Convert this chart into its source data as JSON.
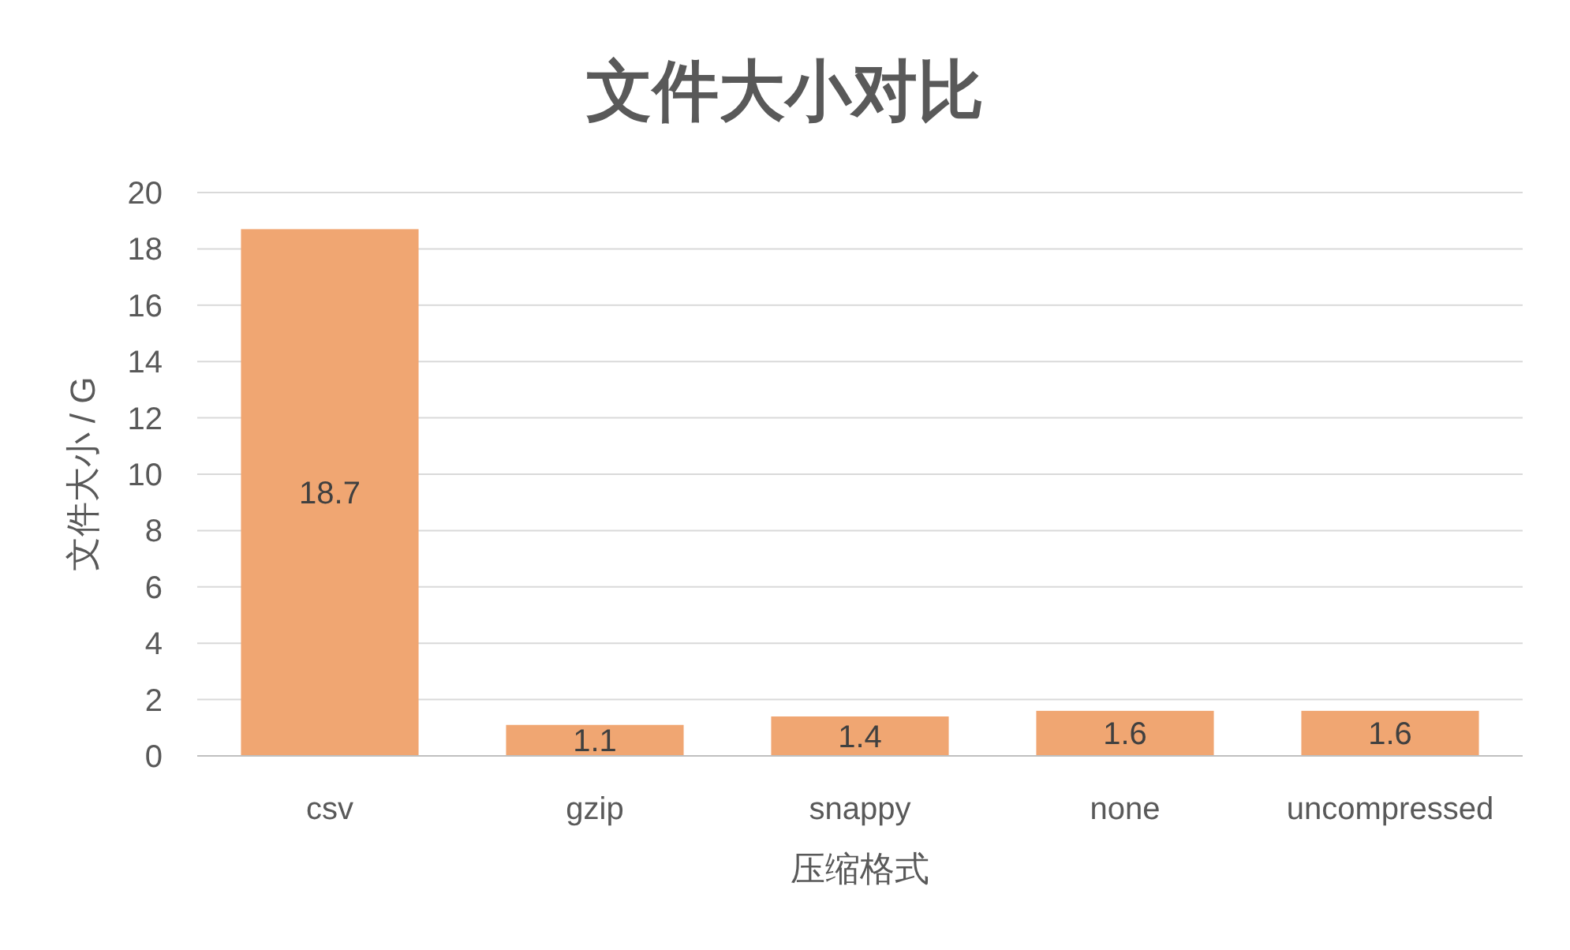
{
  "chart_data": {
    "type": "bar",
    "title": "文件大小对比",
    "xlabel": "压缩格式",
    "ylabel": "文件大小 / G",
    "categories": [
      "csv",
      "gzip",
      "snappy",
      "none",
      "uncompressed"
    ],
    "values": [
      18.7,
      1.1,
      1.4,
      1.6,
      1.6
    ],
    "color": "#f0a672",
    "ylim": [
      0,
      20
    ],
    "yticks": [
      0,
      2,
      4,
      6,
      8,
      10,
      12,
      14,
      16,
      18,
      20
    ],
    "grid": "y",
    "data_labels": true
  }
}
